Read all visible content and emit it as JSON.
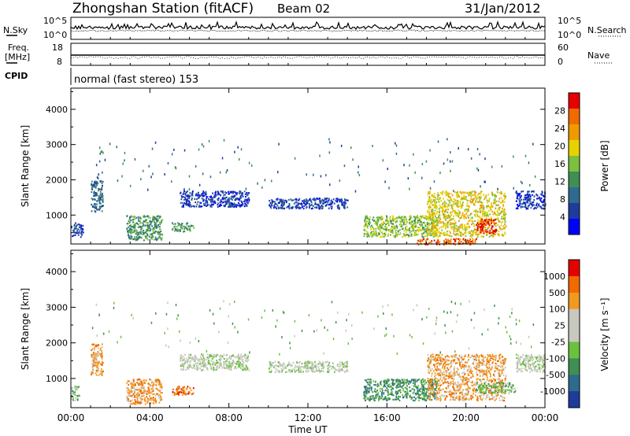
{
  "header": {
    "station": "Zhongshan Station (fitACF)",
    "beam": "Beam 02",
    "date": "31/Jan/2012"
  },
  "noise_panel": {
    "left_label": "N.Sky",
    "left_ticks": [
      "10^5",
      "10^0"
    ],
    "right_label": "N.Search",
    "right_ticks": [
      "10^5",
      "10^0"
    ]
  },
  "freq_panel": {
    "left_label_line1": "Freq.",
    "left_label_line2": "[MHz]",
    "left_ticks": [
      "18",
      "8"
    ],
    "right_label": "Nave",
    "right_ticks": [
      "60",
      "0"
    ]
  },
  "cpid_panel": {
    "label": "CPID",
    "mode_text": "normal (fast stereo) 153"
  },
  "power_panel": {
    "colorbar_label": "Power [dB]",
    "colorbar_ticks": [
      "28",
      "24",
      "20",
      "16",
      "12",
      "8",
      "4"
    ],
    "colors": [
      "#0000ff",
      "#1e3c9c",
      "#2f6b8f",
      "#3f8f55",
      "#7cc03f",
      "#e6d200",
      "#f09a00",
      "#f06a00",
      "#e60000"
    ]
  },
  "velocity_panel": {
    "colorbar_label": "Velocity [m s⁻¹]",
    "colorbar_ticks": [
      "1000",
      "500",
      "100",
      "25",
      "-25",
      "-100",
      "-500",
      "-1000"
    ],
    "colors": [
      "#1e3c9c",
      "#2f6b8f",
      "#3f8f55",
      "#6cc040",
      "#c8c8c0",
      "#c8c8c0",
      "#f09a20",
      "#f06a00",
      "#e60000"
    ]
  },
  "axes": {
    "ylabel": "Slant Range [km]",
    "xlabel": "Time UT",
    "yticks": [
      "4000",
      "3000",
      "2000",
      "1000"
    ],
    "xticks": [
      "00:00",
      "04:00",
      "08:00",
      "12:00",
      "16:00",
      "20:00",
      "00:00"
    ]
  },
  "chart_data": [
    {
      "type": "heatmap",
      "quantity": "Power",
      "title": "",
      "xlabel": "Time UT",
      "ylabel": "Slant Range [km]",
      "xlim": [
        0,
        24
      ],
      "ylim": [
        180,
        4600
      ],
      "color_levels_dB": [
        4,
        8,
        12,
        16,
        20,
        24,
        28
      ],
      "echo_regions": [
        {
          "t0": 0.0,
          "t1": 0.6,
          "r0": 400,
          "r1": 800,
          "level": 1
        },
        {
          "t0": 1.0,
          "t1": 1.6,
          "r0": 1100,
          "r1": 2000,
          "level": 2
        },
        {
          "t0": 2.8,
          "t1": 4.6,
          "r0": 300,
          "r1": 1000,
          "level": 3
        },
        {
          "t0": 5.1,
          "t1": 6.2,
          "r0": 550,
          "r1": 800,
          "level": 3
        },
        {
          "t0": 5.5,
          "t1": 9.0,
          "r0": 1250,
          "r1": 1700,
          "level": 1
        },
        {
          "t0": 10.0,
          "t1": 14.0,
          "r0": 1200,
          "r1": 1500,
          "level": 1
        },
        {
          "t0": 14.8,
          "t1": 18.5,
          "r0": 400,
          "r1": 1000,
          "level": 4
        },
        {
          "t0": 18.0,
          "t1": 22.0,
          "r0": 400,
          "r1": 1700,
          "level": 5
        },
        {
          "t0": 20.5,
          "t1": 21.5,
          "r0": 500,
          "r1": 900,
          "level": 8
        },
        {
          "t0": 17.5,
          "t1": 20.5,
          "r0": 180,
          "r1": 350,
          "level": 7
        },
        {
          "t0": 22.5,
          "t1": 24.0,
          "r0": 1200,
          "r1": 1700,
          "level": 1
        }
      ]
    },
    {
      "type": "heatmap",
      "quantity": "Velocity",
      "title": "",
      "xlabel": "Time UT",
      "ylabel": "Slant Range [km]",
      "xlim": [
        0,
        24
      ],
      "ylim": [
        180,
        4600
      ],
      "color_levels_ms": [
        1000,
        500,
        100,
        25,
        -25,
        -100,
        -500,
        -1000
      ],
      "echo_regions": [
        {
          "t0": 0.0,
          "t1": 0.4,
          "r0": 400,
          "r1": 800,
          "level": 3
        },
        {
          "t0": 1.0,
          "t1": 1.6,
          "r0": 1100,
          "r1": 2000,
          "level": 6
        },
        {
          "t0": 2.8,
          "t1": 4.6,
          "r0": 300,
          "r1": 1000,
          "level": 6
        },
        {
          "t0": 5.1,
          "t1": 6.2,
          "r0": 550,
          "r1": 800,
          "level": 7
        },
        {
          "t0": 5.5,
          "t1": 9.0,
          "r0": 1250,
          "r1": 1700,
          "level": 4
        },
        {
          "t0": 10.0,
          "t1": 14.0,
          "r0": 1200,
          "r1": 1500,
          "level": 4
        },
        {
          "t0": 14.8,
          "t1": 18.5,
          "r0": 400,
          "r1": 1000,
          "level": 2
        },
        {
          "t0": 18.0,
          "t1": 22.0,
          "r0": 400,
          "r1": 1700,
          "level": 6
        },
        {
          "t0": 20.5,
          "t1": 22.5,
          "r0": 600,
          "r1": 900,
          "level": 3
        },
        {
          "t0": 22.5,
          "t1": 24.0,
          "r0": 1200,
          "r1": 1700,
          "level": 4
        }
      ]
    }
  ]
}
